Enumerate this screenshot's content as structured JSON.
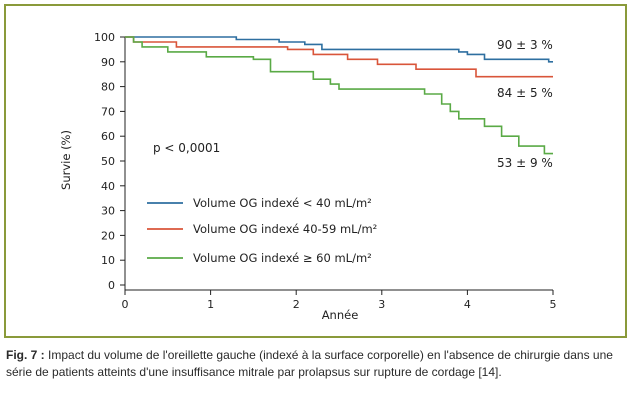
{
  "chart_data": {
    "type": "line",
    "ylabel": "Survie (%)",
    "xlabel": "Année",
    "xlim": [
      0,
      5
    ],
    "ylim": [
      0,
      100
    ],
    "x_ticks": [
      0,
      1,
      2,
      3,
      4,
      5
    ],
    "y_ticks": [
      0,
      10,
      20,
      30,
      40,
      50,
      60,
      70,
      80,
      90,
      100
    ],
    "grid": false,
    "legend_position": "left-middle",
    "annotations": {
      "p_value": "p < 0,0001",
      "series_end_labels": [
        "90 ± 3 %",
        "84 ± 5 %",
        "53 ± 9 %"
      ]
    },
    "series": [
      {
        "name": "Volume OG indexé < 40 mL/m²",
        "color": "#2e6fa0",
        "x": [
          0,
          1.3,
          1.3,
          1.8,
          1.8,
          2.1,
          2.1,
          2.3,
          2.3,
          3.9,
          3.9,
          4.0,
          4.0,
          4.2,
          4.2,
          4.95,
          4.95,
          5.0
        ],
        "y": [
          100,
          100,
          99,
          99,
          98,
          98,
          97,
          97,
          95,
          95,
          94,
          94,
          93,
          93,
          91,
          91,
          90,
          90
        ]
      },
      {
        "name": "Volume OG indexé 40-59 mL/m²",
        "color": "#d9553a",
        "x": [
          0,
          0.1,
          0.1,
          0.6,
          0.6,
          1.9,
          1.9,
          2.2,
          2.2,
          2.6,
          2.6,
          2.95,
          2.95,
          3.4,
          3.4,
          4.1,
          4.1,
          5.0
        ],
        "y": [
          100,
          100,
          98,
          98,
          96,
          96,
          95,
          95,
          93,
          93,
          91,
          91,
          89,
          89,
          87,
          87,
          84,
          84
        ]
      },
      {
        "name": "Volume OG indexé ≥ 60 mL/m²",
        "color": "#5aaa46",
        "x": [
          0,
          0.1,
          0.1,
          0.2,
          0.2,
          0.5,
          0.5,
          0.95,
          0.95,
          1.5,
          1.5,
          1.7,
          1.7,
          2.2,
          2.2,
          2.4,
          2.4,
          2.5,
          2.5,
          3.5,
          3.5,
          3.7,
          3.7,
          3.8,
          3.8,
          3.9,
          3.9,
          4.2,
          4.2,
          4.4,
          4.4,
          4.6,
          4.6,
          4.9,
          4.9,
          5.0
        ],
        "y": [
          100,
          100,
          98,
          98,
          96,
          96,
          94,
          94,
          92,
          92,
          91,
          91,
          86,
          86,
          83,
          83,
          81,
          81,
          79,
          79,
          77,
          77,
          73,
          73,
          70,
          70,
          67,
          67,
          64,
          64,
          60,
          60,
          56,
          56,
          53,
          53
        ]
      }
    ]
  },
  "caption": {
    "label": "Fig. 7 :",
    "text": "Impact du volume de l'oreillette gauche (indexé à la surface corporelle) en l'absence de chirurgie dans une série de patients atteints d'une insuffisance mitrale par prolapsus sur rupture de cordage [14]."
  }
}
